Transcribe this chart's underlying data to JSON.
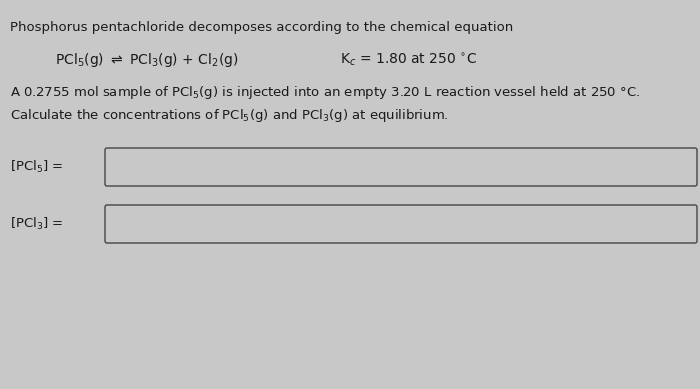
{
  "background_color": "#c8c8c8",
  "text_color": "#1a1a1a",
  "title_line": "Phosphorus pentachloride decomposes according to the chemical equation",
  "body_line1": "A 0.2755 mol sample of PCl$_5$(g) is injected into an empty 3.20 L reaction vessel held at 250 °C.",
  "body_line2": "Calculate the concentrations of PCl$_5$(g) and PCl$_3$(g) at equilibrium.",
  "label1": "[PCl$_5$] =",
  "label2": "[PCl$_3$] =",
  "box_facecolor": "#c8c8c8",
  "box_edgecolor": "#444444",
  "figsize": [
    7.0,
    3.89
  ],
  "dpi": 100,
  "fs_title": 9.5,
  "fs_eq": 10.0,
  "fs_body": 9.5,
  "fs_label": 9.5
}
